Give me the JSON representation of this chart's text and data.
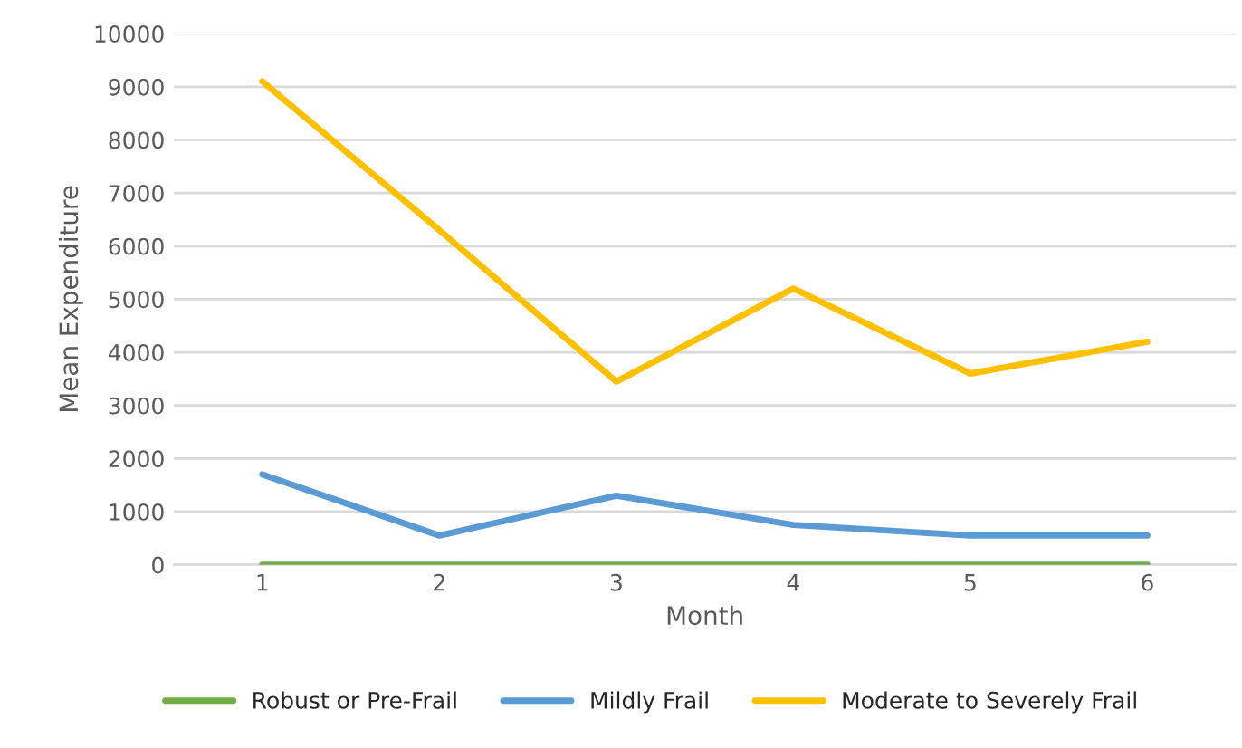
{
  "chart_data": {
    "type": "line",
    "xlabel": "Month",
    "ylabel": "Mean Expenditure",
    "categories": [
      "1",
      "2",
      "3",
      "4",
      "5",
      "6"
    ],
    "series": [
      {
        "name": "Robust or Pre-Frail",
        "color": "#70ad47",
        "values": [
          0,
          0,
          0,
          0,
          0,
          0
        ]
      },
      {
        "name": "Mildly Frail",
        "color": "#5b9bd5",
        "values": [
          1700,
          550,
          1300,
          750,
          550,
          550
        ]
      },
      {
        "name": "Moderate to Severely Frail",
        "color": "#ffc000",
        "values": [
          9100,
          6300,
          3450,
          5200,
          3600,
          4200
        ]
      }
    ],
    "ylim": [
      0,
      10000
    ],
    "yticks": [
      0,
      1000,
      2000,
      3000,
      4000,
      5000,
      6000,
      7000,
      8000,
      9000,
      10000
    ],
    "grid": "y",
    "legend": "bottom",
    "marker": "none",
    "line_style": "solid"
  }
}
